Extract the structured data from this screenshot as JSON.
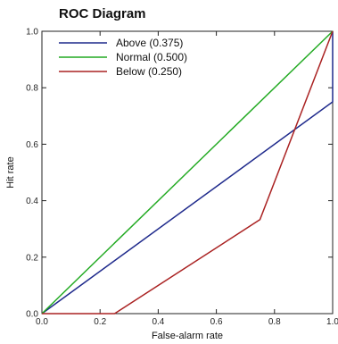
{
  "chart_data": {
    "type": "line",
    "title": "ROC Diagram",
    "xlabel": "False-alarm rate",
    "ylabel": "Hit rate",
    "xlim": [
      0,
      1
    ],
    "ylim": [
      0,
      1
    ],
    "x_ticks": [
      "0.0",
      "0.2",
      "0.4",
      "0.6",
      "0.8",
      "1.0"
    ],
    "y_ticks": [
      "0.0",
      "0.2",
      "0.4",
      "0.6",
      "0.8",
      "1.0"
    ],
    "legend_position": "top-left",
    "grid": false,
    "series": [
      {
        "name": "Above (0.375)",
        "color": "#1f2a8c",
        "x": [
          0,
          1,
          1
        ],
        "y": [
          0,
          0.75,
          1
        ]
      },
      {
        "name": "Normal (0.500)",
        "color": "#22aa22",
        "x": [
          0,
          1
        ],
        "y": [
          0,
          1
        ]
      },
      {
        "name": "Below (0.250)",
        "color": "#aa2222",
        "x": [
          0,
          0.25,
          0.75,
          1
        ],
        "y": [
          0,
          0,
          0.333,
          1
        ]
      }
    ]
  }
}
